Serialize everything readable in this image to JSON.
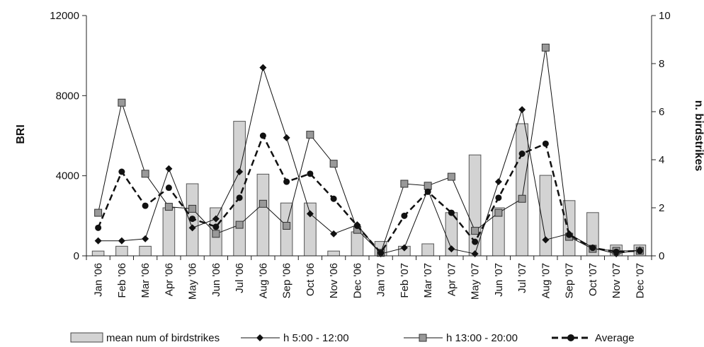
{
  "chart_data": {
    "type": "bar",
    "categories": [
      "Jan '06",
      "Feb '06",
      "Mar '06",
      "Apr '06",
      "May '06",
      "Jun '06",
      "Jul '06",
      "Aug '06",
      "Sep '06",
      "Oct '06",
      "Nov '06",
      "Dec '06",
      "Jan '07",
      "Feb '07",
      "Mar '07",
      "Apr '07",
      "May '07",
      "Jun '07",
      "Jul '07",
      "Aug '07",
      "Sep '07",
      "Oct '07",
      "Nov '07",
      "Dec '07"
    ],
    "ylabel": "BRI",
    "y2label": "n. birdstrikes",
    "ylim": [
      0,
      12000
    ],
    "y2lim": [
      0,
      10
    ],
    "yticks": [
      "0",
      "4000",
      "8000",
      "12000"
    ],
    "y2ticks": [
      "0",
      "2",
      "4",
      "6",
      "8",
      "10"
    ],
    "legend_position": "bottom",
    "grid": false,
    "series": [
      {
        "name": "mean num of birdstrikes",
        "type": "bar",
        "axis": "right",
        "color": "#d3d3d3",
        "values": [
          0.2,
          0.4,
          0.4,
          2.0,
          3.0,
          2.0,
          5.6,
          3.4,
          2.2,
          2.2,
          0.2,
          1.0,
          0.6,
          0.4,
          0.5,
          1.8,
          4.2,
          2.0,
          5.5,
          3.35,
          2.3,
          1.8,
          0.45,
          0.45
        ]
      },
      {
        "name": "h 5:00 - 12:00",
        "type": "line",
        "axis": "left",
        "marker": "diamond",
        "color": "#111111",
        "values": [
          750,
          750,
          850,
          4350,
          1400,
          1850,
          4200,
          9400,
          5900,
          2100,
          1100,
          1550,
          100,
          400,
          3300,
          350,
          100,
          3700,
          7300,
          800,
          1100,
          400,
          100,
          300
        ]
      },
      {
        "name": "h 13:00 - 20:00",
        "type": "line",
        "axis": "left",
        "marker": "square",
        "color": "#111111",
        "values": [
          2150,
          7650,
          4100,
          2450,
          2350,
          1100,
          1550,
          2600,
          1500,
          6050,
          4600,
          1300,
          150,
          3600,
          3500,
          3950,
          1250,
          2150,
          2850,
          10400,
          950,
          350,
          250,
          250
        ]
      },
      {
        "name": "Average",
        "type": "line",
        "axis": "left",
        "marker": "circle",
        "dashed": true,
        "color": "#111111",
        "values": [
          1400,
          4200,
          2500,
          3400,
          1850,
          1450,
          2900,
          6000,
          3700,
          4100,
          2850,
          1500,
          150,
          2000,
          3200,
          2150,
          700,
          2900,
          5100,
          5600,
          1050,
          400,
          200,
          250
        ]
      }
    ]
  }
}
